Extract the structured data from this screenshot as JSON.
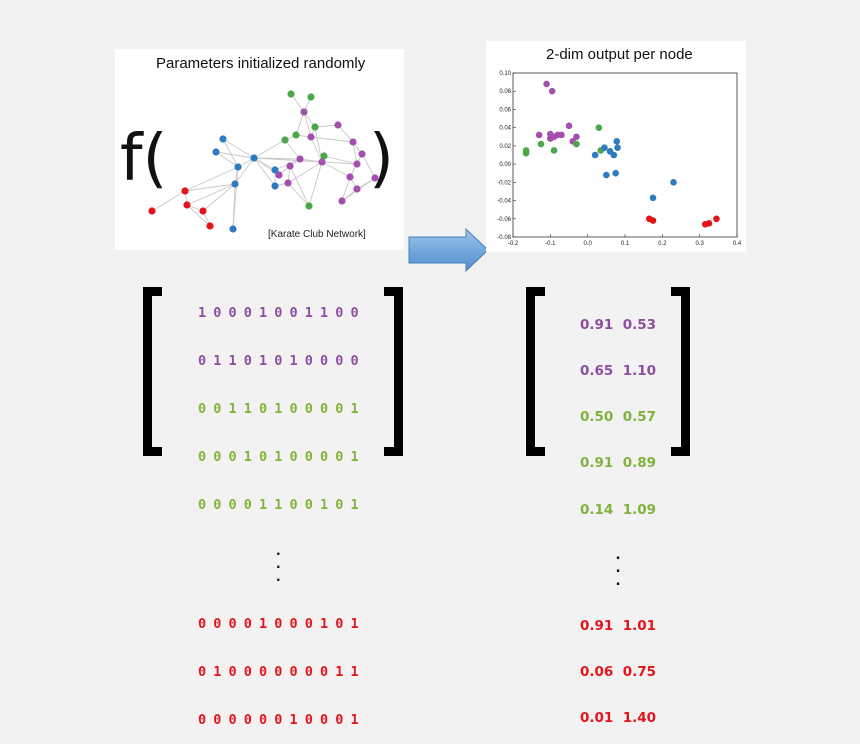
{
  "graph_panel": {
    "title": "Parameters initialized randomly",
    "function_open": "f(",
    "function_close": ")",
    "caption": "[Karate Club Network]"
  },
  "scatter_panel": {
    "title": "2-dim output per node"
  },
  "colors": {
    "purple": "#8d4ea0",
    "green": "#7fb33e",
    "red": "#e3151b",
    "blue": "#2f7bbf",
    "green_dot": "#4ca64a",
    "purple_dot": "#a44fae",
    "arrow": "#6fa8dc"
  },
  "chart_data": {
    "type": "scatter",
    "title": "2-dim output per node",
    "xlim": [
      -0.2,
      0.4
    ],
    "ylim": [
      -0.08,
      0.1
    ],
    "xticks": [
      "-0.2",
      "-0.1",
      "0.0",
      "0.1",
      "0.2",
      "0.3",
      "0.4"
    ],
    "yticks": [
      "0.10",
      "0.08",
      "0.06",
      "0.04",
      "0.02",
      "0.00",
      "-0.02",
      "-0.04",
      "-0.06",
      "-0.08"
    ],
    "series": [
      {
        "color": "purple",
        "points": [
          [
            -0.11,
            0.088
          ],
          [
            -0.095,
            0.08
          ],
          [
            -0.13,
            0.032
          ],
          [
            -0.1,
            0.033
          ],
          [
            -0.09,
            0.03
          ],
          [
            -0.08,
            0.032
          ],
          [
            -0.07,
            0.032
          ],
          [
            -0.05,
            0.042
          ],
          [
            -0.03,
            0.03
          ],
          [
            -0.04,
            0.025
          ],
          [
            -0.1,
            0.028
          ]
        ]
      },
      {
        "color": "green",
        "points": [
          [
            -0.165,
            0.015
          ],
          [
            -0.165,
            0.012
          ],
          [
            -0.125,
            0.022
          ],
          [
            -0.09,
            0.015
          ],
          [
            -0.03,
            0.022
          ],
          [
            0.03,
            0.04
          ],
          [
            0.035,
            0.015
          ]
        ]
      },
      {
        "color": "blue",
        "points": [
          [
            0.02,
            0.01
          ],
          [
            0.045,
            0.018
          ],
          [
            0.06,
            0.014
          ],
          [
            0.07,
            0.01
          ],
          [
            0.078,
            0.025
          ],
          [
            0.08,
            0.018
          ],
          [
            0.05,
            -0.012
          ],
          [
            0.075,
            -0.01
          ],
          [
            0.175,
            -0.037
          ],
          [
            0.23,
            -0.02
          ]
        ]
      },
      {
        "color": "red",
        "points": [
          [
            0.165,
            -0.06
          ],
          [
            0.175,
            -0.062
          ],
          [
            0.315,
            -0.066
          ],
          [
            0.325,
            -0.065
          ],
          [
            0.345,
            -0.06
          ]
        ]
      }
    ]
  },
  "binary_matrix": {
    "rows": [
      {
        "text": "1 0 0 0 1 0 0 1 1 0 0",
        "color": "purple"
      },
      {
        "text": "0 1 1 0 1 0 1 0 0 0 0",
        "color": "purple"
      },
      {
        "text": "0 0 1 1 0 1 0 0 0 0 1",
        "color": "green"
      },
      {
        "text": "0 0 0 1 0 1 0 0 0 0 1",
        "color": "green"
      },
      {
        "text": "0 0 0 0 1 1 0 0 1 0 1",
        "color": "green"
      },
      {
        "text": "0 0 0 0 1 0 0 0 1 0 1",
        "color": "red"
      },
      {
        "text": "0 1 0 0 0 0 0 0 0 1 1",
        "color": "red"
      },
      {
        "text": "0 0 0 0 0 0 1 0 0 0 1",
        "color": "red"
      }
    ],
    "ellipsis": ".\n.\n."
  },
  "embedding_matrix": {
    "rows": [
      {
        "text": "0.91  0.53",
        "color": "purple"
      },
      {
        "text": "0.65  1.10",
        "color": "purple"
      },
      {
        "text": "0.50  0.57",
        "color": "green"
      },
      {
        "text": "0.91  0.89",
        "color": "green"
      },
      {
        "text": "0.14  1.09",
        "color": "green"
      },
      {
        "text": "0.91  1.01",
        "color": "red"
      },
      {
        "text": "0.06  0.75",
        "color": "red"
      },
      {
        "text": "0.01  1.40",
        "color": "red"
      }
    ],
    "ellipsis": ".\n.\n."
  }
}
